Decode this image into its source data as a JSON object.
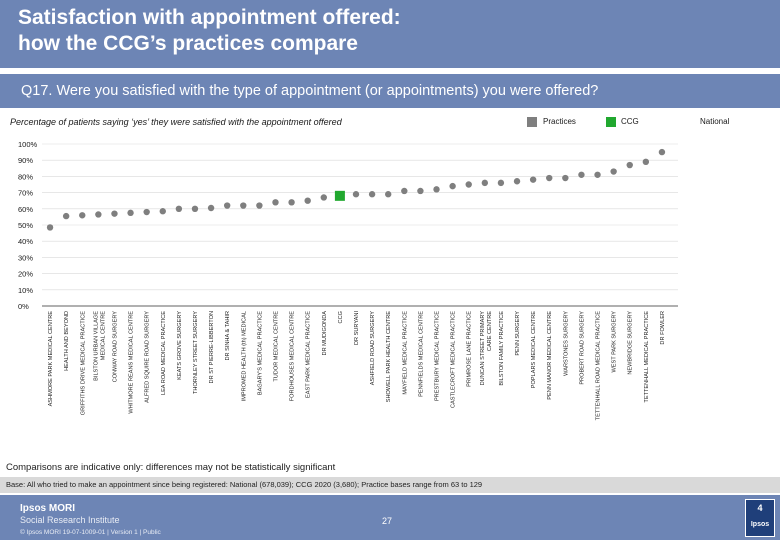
{
  "header": {
    "title_line1": "Satisfaction with appointment offered:",
    "title_line2": "how the CCG’s practices compare",
    "question": "Q17. Were you satisfied with the type of appointment (or appointments) you were offered?"
  },
  "subtitle": "Percentage of patients saying ‘yes’ they were satisfied with the appointment offered",
  "legend": [
    {
      "label": "Practices",
      "color": "#7f7f7f"
    },
    {
      "label": "CCG",
      "color": "#21a82f"
    },
    {
      "label": "National",
      "color": "#123f7a"
    }
  ],
  "note": "Comparisons are indicative only: differences may not be statistically significant",
  "base": "Base: All who tried to make an appointment since being registered: National (678,039); CCG 2020 (3,680); Practice bases range from 63 to 129",
  "footer": {
    "brand": "Ipsos MORI",
    "sub": "Social Research Institute",
    "copyright": "© Ipsos MORI    19-07-1009-01 | Version 1 | Public",
    "page": "27",
    "logo_num": "4",
    "logo_name": "Ipsos"
  },
  "chart_data": {
    "type": "scatter",
    "ylabel": "Percentage of patients saying ‘yes’ they were satisfied with the appointment offered",
    "ylim": [
      0,
      100
    ],
    "y_ticks": [
      "100%",
      "90%",
      "80%",
      "70%",
      "60%",
      "50%",
      "40%",
      "30%",
      "20%",
      "10%",
      "0%"
    ],
    "categories": [
      "ASHMORE PARK MEDICAL CENTRE",
      "HEALTH AND BEYOND",
      "GRIFFITHS DRIVE MEDICAL PRACTICE",
      "BILSTON URBAN VILLAGE MEDICAL CENTRE",
      "CONWAY ROAD SURGERY",
      "WHITMORE REANS MEDICAL CENTRE",
      "ALFRED SQUIRE ROAD SURGERY",
      "LEA ROAD MEDICAL PRACTICE",
      "KEATS GROVE SURGERY",
      "THORNLEY STREET SURGERY",
      "DR ST PIERRE-LIBBERTON",
      "DR SINHA & TAHIR",
      "IMPROMED HEALTH (th) MEDICAL",
      "BAGARY'S MEDICAL PRACTICE",
      "TUDOR MEDICAL CENTRE",
      "FORDHOUSES MEDICAL CENTRE",
      "EAST PARK MEDICAL PRACTICE",
      "DR MUDIGONDA",
      "CCG",
      "DR SURYANI",
      "ASHFIELD ROAD SURGERY",
      "SHOWELL PARK HEALTH CENTRE",
      "MAYFIELD MEDICAL PRACTICE",
      "PENNFIELDS MEDICAL CENTRE",
      "PRESTBURY MEDICAL PRACTICE",
      "CASTLECROFT MEDICAL PRACTICE",
      "PRIMROSE LANE PRACTICE",
      "DUNCAN STREET PRIMARY CARE CENTRE",
      "BILSTON FAMILY PRACTICE",
      "PENN SURGERY",
      "POPLARS MEDICAL CENTRE",
      "PENN MANOR MEDICAL CENTRE",
      "WARSTONES SURGERY",
      "PROBERT ROAD SURGERY",
      "TETTENHALL ROAD MEDICAL PRACTICE",
      "WEST PARK SURGERY",
      "NEWBRIDGE SURGERY",
      "TETTENHALL MEDICAL PRACTICE",
      "DR FOWLER"
    ],
    "values": [
      48.5,
      55.5,
      56,
      56.5,
      57,
      57.5,
      58,
      58.5,
      60,
      60,
      60.5,
      62,
      62,
      62,
      64,
      64,
      65,
      67,
      68,
      69,
      69,
      69,
      71,
      71,
      72,
      74,
      75,
      76,
      76,
      77,
      78,
      79,
      79,
      81,
      81,
      83,
      87,
      89,
      95
    ],
    "highlight_index": 18,
    "colors": {
      "practice": "#7f7f7f",
      "ccg": "#21a82f",
      "grid": "#d9d9d9",
      "axis": "#333333",
      "text": "#1a1a1a"
    }
  }
}
